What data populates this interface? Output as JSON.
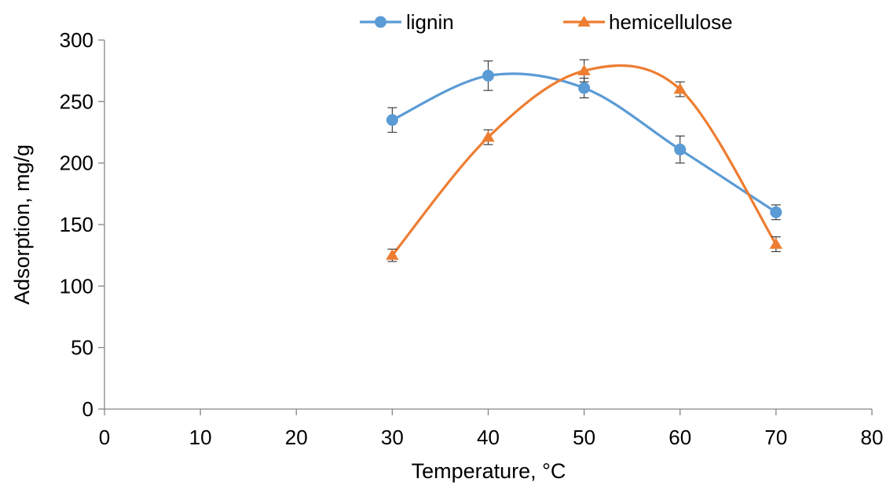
{
  "chart_data": {
    "type": "line",
    "title": "",
    "xlabel": "Temperature, °C",
    "ylabel": "Adsorption, mg/g",
    "xlim": [
      0,
      80
    ],
    "ylim": [
      0,
      300
    ],
    "x_ticks": [
      0,
      10,
      20,
      30,
      40,
      50,
      60,
      70,
      80
    ],
    "y_ticks": [
      0,
      50,
      100,
      150,
      200,
      250,
      300
    ],
    "grid": false,
    "legend_position": "top-center",
    "smooth": true,
    "series": [
      {
        "name": "lignin",
        "marker": "circle",
        "color": "#5B9BD5",
        "x": [
          30,
          40,
          50,
          60,
          70
        ],
        "y": [
          235,
          271,
          261,
          211,
          160
        ],
        "error": [
          10,
          12,
          8,
          11,
          6
        ]
      },
      {
        "name": "hemicellulose",
        "marker": "triangle",
        "color": "#ED7D31",
        "x": [
          30,
          40,
          50,
          60,
          70
        ],
        "y": [
          125,
          221,
          275,
          260,
          134
        ],
        "error": [
          5,
          6,
          9,
          6,
          6
        ]
      }
    ]
  }
}
